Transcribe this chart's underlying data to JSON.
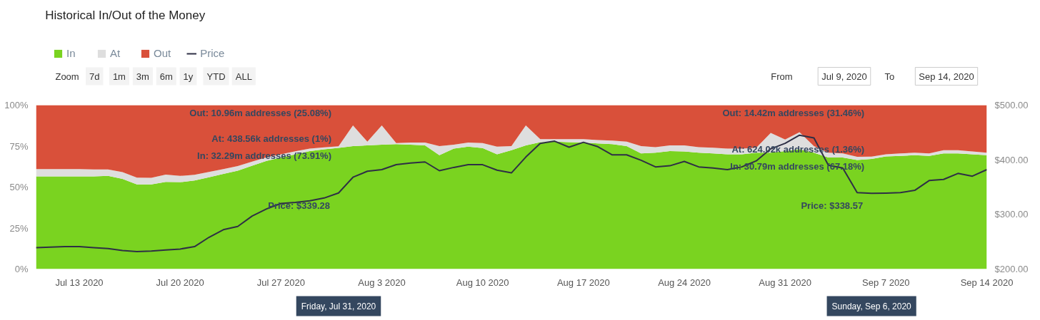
{
  "chart_data": {
    "type": "area",
    "stacked": true,
    "title": "Historical In/Out of the Money",
    "legend": "top left",
    "x": [
      "2020-07-10",
      "2020-07-11",
      "2020-07-12",
      "2020-07-13",
      "2020-07-14",
      "2020-07-15",
      "2020-07-16",
      "2020-07-17",
      "2020-07-18",
      "2020-07-19",
      "2020-07-20",
      "2020-07-21",
      "2020-07-22",
      "2020-07-23",
      "2020-07-24",
      "2020-07-25",
      "2020-07-26",
      "2020-07-27",
      "2020-07-28",
      "2020-07-29",
      "2020-07-30",
      "2020-07-31",
      "2020-08-01",
      "2020-08-02",
      "2020-08-03",
      "2020-08-04",
      "2020-08-05",
      "2020-08-06",
      "2020-08-07",
      "2020-08-08",
      "2020-08-09",
      "2020-08-10",
      "2020-08-11",
      "2020-08-12",
      "2020-08-13",
      "2020-08-14",
      "2020-08-15",
      "2020-08-16",
      "2020-08-17",
      "2020-08-18",
      "2020-08-19",
      "2020-08-20",
      "2020-08-21",
      "2020-08-22",
      "2020-08-23",
      "2020-08-24",
      "2020-08-25",
      "2020-08-26",
      "2020-08-27",
      "2020-08-28",
      "2020-08-29",
      "2020-08-30",
      "2020-08-31",
      "2020-09-01",
      "2020-09-02",
      "2020-09-03",
      "2020-09-04",
      "2020-09-05",
      "2020-09-06",
      "2020-09-07",
      "2020-09-08",
      "2020-09-09",
      "2020-09-10",
      "2020-09-11",
      "2020-09-12",
      "2020-09-13",
      "2020-09-14"
    ],
    "series": [
      {
        "name": "In",
        "color": "#7ad320",
        "values": [
          56.5,
          56.5,
          56.5,
          56.5,
          56.5,
          56.8,
          55.0,
          51.6,
          51.6,
          53.1,
          53.0,
          54,
          56,
          58,
          60,
          63,
          66,
          68,
          70,
          72,
          73,
          73.91,
          75.0,
          75.4,
          75.9,
          76.2,
          75.9,
          75.4,
          69.5,
          73.5,
          74.7,
          73.8,
          70.0,
          72.5,
          75.4,
          77.4,
          77.7,
          77.4,
          77.2,
          76.6,
          76.2,
          75.0,
          70.5,
          71.0,
          72.0,
          71.7,
          71.0,
          70.5,
          70,
          70,
          71,
          71,
          72,
          73,
          71,
          68,
          68,
          66.5,
          67.18,
          68.75,
          69.0,
          69.5,
          69.0,
          70.5,
          70.5,
          70.0,
          69.5
        ]
      },
      {
        "name": "At",
        "color": "#dedede",
        "values": [
          4.5,
          4.5,
          4.5,
          4.5,
          4.3,
          4.0,
          4.1,
          4.2,
          4.0,
          4.5,
          3.8,
          3.5,
          3.2,
          3.0,
          2.8,
          2.5,
          2.2,
          2.0,
          1.8,
          1.5,
          1.2,
          1,
          12.6,
          2.3,
          11.7,
          0.7,
          1.3,
          1.8,
          5.5,
          2.4,
          2.5,
          3.1,
          4.7,
          2.5,
          12.2,
          1.8,
          1.5,
          1.8,
          2.0,
          2.1,
          2.2,
          2.7,
          4.5,
          3.4,
          3.4,
          3.7,
          3.4,
          3.5,
          3.5,
          3.5,
          3,
          12,
          7,
          10.5,
          4,
          3,
          2.5,
          2,
          1.36,
          1.2,
          1.5,
          1.5,
          1.5,
          2.0,
          2.0,
          1.7,
          1.5
        ]
      },
      {
        "name": "Out",
        "color": "#d9503a",
        "values": [
          39.0,
          39.0,
          39.0,
          39.0,
          39.2,
          39.2,
          40.9,
          44.2,
          44.4,
          42.4,
          43.2,
          42.5,
          40.8,
          39.0,
          37.2,
          34.5,
          31.8,
          30.0,
          28.2,
          26.5,
          25.8,
          25.08,
          12.4,
          22.3,
          12.4,
          23.1,
          22.8,
          22.8,
          25.0,
          24.1,
          22.8,
          23.1,
          25.3,
          25.0,
          12.4,
          20.8,
          20.8,
          20.8,
          20.8,
          21.3,
          21.6,
          22.3,
          25.0,
          25.6,
          24.6,
          24.6,
          25.6,
          26.0,
          26.5,
          26.5,
          26.0,
          17.0,
          21.0,
          16.5,
          25.0,
          29.0,
          29.5,
          31.5,
          31.46,
          30.05,
          29.5,
          29.0,
          29.5,
          27.5,
          27.5,
          28.3,
          29.0
        ]
      },
      {
        "name": "Price",
        "color": "#2e2f45",
        "type": "line",
        "axis": "y2",
        "values": [
          239,
          240,
          241,
          241,
          239,
          237.5,
          234,
          232,
          233,
          235,
          236.6,
          241,
          258,
          272,
          278,
          297,
          310,
          320,
          322,
          325,
          330,
          339.28,
          368,
          379,
          382,
          391,
          394,
          396,
          380,
          386,
          391,
          391,
          381,
          376,
          405,
          430,
          434,
          423,
          432,
          424,
          409,
          409,
          399,
          387,
          389,
          397,
          387,
          385,
          382,
          387,
          398,
          420,
          430,
          445,
          440,
          390,
          385,
          340,
          338.57,
          339,
          340,
          344,
          362,
          364,
          375,
          370,
          382
        ]
      }
    ],
    "xlim": [
      "2020-07-10",
      "2020-09-14"
    ],
    "xticks": [
      {
        "value": "2020-07-13",
        "label": "Jul 13 2020"
      },
      {
        "value": "2020-07-20",
        "label": "Jul 20 2020"
      },
      {
        "value": "2020-07-27",
        "label": "Jul 27 2020"
      },
      {
        "value": "2020-08-03",
        "label": "Aug 3 2020"
      },
      {
        "value": "2020-08-10",
        "label": "Aug 10 2020"
      },
      {
        "value": "2020-08-17",
        "label": "Aug 17 2020"
      },
      {
        "value": "2020-08-24",
        "label": "Aug 24 2020"
      },
      {
        "value": "2020-08-31",
        "label": "Aug 31 2020"
      },
      {
        "value": "2020-09-07",
        "label": "Sep 7 2020"
      },
      {
        "value": "2020-09-14",
        "label": "Sep 14 2020"
      }
    ],
    "ylim": [
      0,
      100
    ],
    "yticks": [
      {
        "value": 0,
        "label": "0%"
      },
      {
        "value": 25,
        "label": "25%"
      },
      {
        "value": 50,
        "label": "50%"
      },
      {
        "value": 75,
        "label": "75%"
      },
      {
        "value": 100,
        "label": "100%"
      }
    ],
    "y2lim": [
      200,
      500
    ],
    "y2ticks": [
      {
        "value": 200,
        "label": "$200.00"
      },
      {
        "value": 300,
        "label": "$300.00"
      },
      {
        "value": 400,
        "label": "$400.00"
      },
      {
        "value": 500,
        "label": "$500.00"
      }
    ],
    "annotations": [
      "Zoom",
      "7d",
      "1m",
      "3m",
      "6m",
      "1y",
      "YTD",
      "ALL",
      "From",
      "Jul 9, 2020",
      "To",
      "Sep 14, 2020",
      {
        "text": "Out: 10.96m addresses (25.08%)",
        "x": "2020-07-31",
        "y": 100
      },
      {
        "text": "At: 438.56k addresses (1%)",
        "x": "2020-07-31",
        "y": 74.91
      },
      {
        "text": "In: 32.29m addresses (73.91%)",
        "x": "2020-07-31",
        "y": 73.91
      },
      "Price: $339.28",
      "Friday, Jul 31, 2020",
      {
        "text": "Out: 14.42m addresses (31.46%)",
        "x": "2020-09-06",
        "y": 100
      },
      {
        "text": "At: 624.02k addresses (1.36%)",
        "x": "2020-09-06",
        "y": 68.54
      },
      {
        "text": "In: 30.79m addresses (67.18%)",
        "x": "2020-09-06",
        "y": 67.18
      },
      "Price: $338.57",
      "Sunday, Sep 6, 2020"
    ]
  }
}
